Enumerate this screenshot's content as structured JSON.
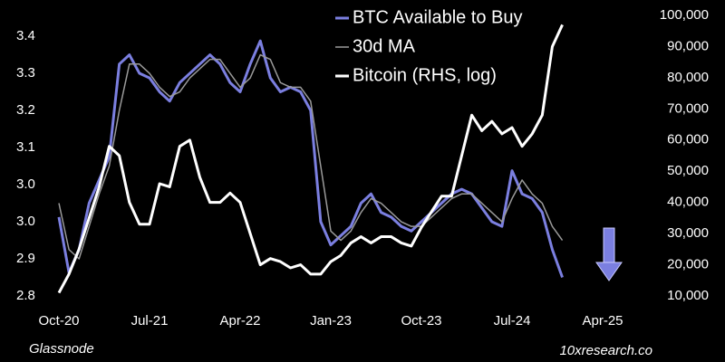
{
  "chart_data": {
    "type": "line",
    "legend": {
      "position": "top"
    },
    "footer_left": "Glassnode",
    "footer_right": "10xresearch.co",
    "x": [
      "Oct-20",
      "Nov-20",
      "Dec-20",
      "Jan-21",
      "Feb-21",
      "Mar-21",
      "Apr-21",
      "May-21",
      "Jun-21",
      "Jul-21",
      "Aug-21",
      "Sep-21",
      "Oct-21",
      "Nov-21",
      "Dec-21",
      "Jan-22",
      "Feb-22",
      "Mar-22",
      "Apr-22",
      "May-22",
      "Jun-22",
      "Jul-22",
      "Aug-22",
      "Sep-22",
      "Oct-22",
      "Nov-22",
      "Dec-22",
      "Jan-23",
      "Feb-23",
      "Mar-23",
      "Apr-23",
      "May-23",
      "Jun-23",
      "Jul-23",
      "Aug-23",
      "Sep-23",
      "Oct-23",
      "Nov-23",
      "Dec-23",
      "Jan-24",
      "Feb-24",
      "Mar-24",
      "Apr-24",
      "May-24",
      "Jun-24",
      "Jul-24",
      "Aug-24",
      "Sep-24",
      "Oct-24",
      "Nov-24",
      "Dec-24"
    ],
    "xlim": [
      "Oct-20",
      "Apr-25"
    ],
    "xticks": [
      "Oct-20",
      "Jul-21",
      "Apr-22",
      "Jan-23",
      "Oct-23",
      "Jul-24",
      "Apr-25"
    ],
    "ylim": [
      2.8,
      3.405
    ],
    "yticks": [
      2.8,
      {
        "value": 2.88,
        "label": "2.9"
      },
      {
        "value": 2.96,
        "label": "3.0"
      },
      {
        "value": 3.04,
        "label": "3.0"
      },
      {
        "value": 3.12,
        "label": "3.1"
      },
      3.2,
      {
        "value": 3.28,
        "label": "3.3"
      },
      {
        "value": 3.36,
        "label": "3.4"
      }
    ],
    "y2lim": [
      10000,
      100000
    ],
    "y2ticks": [
      {
        "value": 10000,
        "label": "10,000"
      },
      {
        "value": 20000,
        "label": "20,000"
      },
      {
        "value": 30000,
        "label": "30,000"
      },
      {
        "value": 40000,
        "label": "40,000"
      },
      {
        "value": 50000,
        "label": "50,000"
      },
      {
        "value": 60000,
        "label": "60,000"
      },
      {
        "value": 70000,
        "label": "70,000"
      },
      {
        "value": 80000,
        "label": "80,000"
      },
      {
        "value": 90000,
        "label": "90,000"
      },
      {
        "value": 100000,
        "label": "100,000"
      }
    ],
    "series": [
      {
        "name": "BTC Available to Buy",
        "color": "#7b7fe0",
        "width": 3,
        "values": [
          2.97,
          2.85,
          2.9,
          3.0,
          3.05,
          3.1,
          3.3,
          3.32,
          3.28,
          3.27,
          3.24,
          3.22,
          3.26,
          3.28,
          3.3,
          3.32,
          3.3,
          3.26,
          3.24,
          3.3,
          3.35,
          3.27,
          3.24,
          3.25,
          3.24,
          3.2,
          2.96,
          2.91,
          2.93,
          2.95,
          3.0,
          3.02,
          2.98,
          2.97,
          2.95,
          2.94,
          2.96,
          2.98,
          3.0,
          3.02,
          3.03,
          3.02,
          2.99,
          2.96,
          2.95,
          3.07,
          3.02,
          3.01,
          2.98,
          2.9,
          2.84
        ]
      },
      {
        "name": "30d MA",
        "color": "#9a9a9a",
        "width": 1.5,
        "values": [
          3.0,
          2.9,
          2.88,
          2.95,
          3.02,
          3.08,
          3.2,
          3.3,
          3.3,
          3.28,
          3.25,
          3.23,
          3.24,
          3.27,
          3.29,
          3.31,
          3.31,
          3.28,
          3.25,
          3.27,
          3.32,
          3.31,
          3.26,
          3.25,
          3.25,
          3.22,
          3.08,
          2.94,
          2.92,
          2.94,
          2.98,
          3.01,
          3.0,
          2.98,
          2.96,
          2.95,
          2.95,
          2.97,
          2.99,
          3.01,
          3.02,
          3.02,
          3.0,
          2.98,
          2.96,
          3.01,
          3.05,
          3.02,
          3.0,
          2.95,
          2.92
        ]
      },
      {
        "name": "Bitcoin (RHS, log)",
        "color": "#ffffff",
        "width": 3,
        "axis": "y2",
        "values": [
          11000,
          17000,
          25000,
          35000,
          45000,
          58000,
          55000,
          40000,
          33000,
          33000,
          46000,
          45000,
          58000,
          60000,
          48000,
          40000,
          40000,
          43000,
          40000,
          30000,
          20000,
          22000,
          21000,
          19000,
          20000,
          17000,
          17000,
          21000,
          23000,
          27000,
          29000,
          27000,
          29000,
          29000,
          27000,
          26000,
          32000,
          37000,
          42000,
          42000,
          55000,
          68000,
          63000,
          66000,
          62000,
          64000,
          58000,
          62000,
          68000,
          90000,
          97000
        ]
      }
    ]
  }
}
